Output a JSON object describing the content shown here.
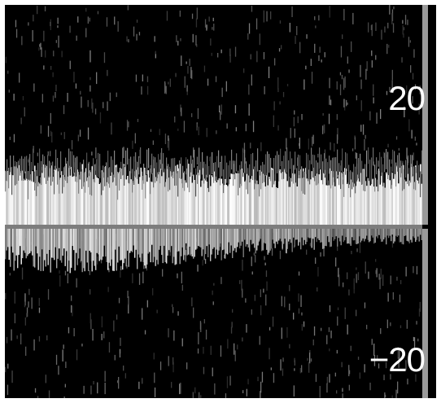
{
  "image": {
    "kind": "spectral-doppler-trace",
    "background_color": "#000000",
    "signal_color": "#ffffff",
    "baseline_color": "#7d7d7d",
    "scale_bar_color": "#9a9a9a",
    "tick_accent_color": "#2ee8b0"
  },
  "scale": {
    "top_label": "20",
    "bottom_label": "−20"
  }
}
